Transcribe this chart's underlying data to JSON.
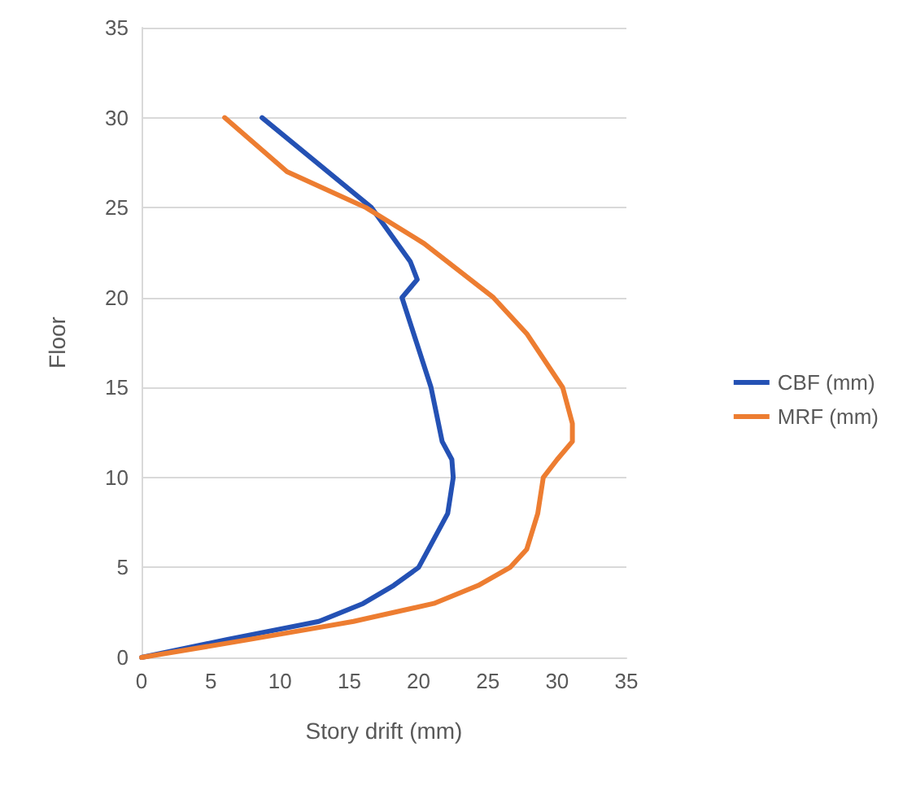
{
  "chart_data": {
    "type": "line",
    "xlabel": "Story drift (mm)",
    "ylabel": "Floor",
    "xlim": [
      0,
      35
    ],
    "xticks": [
      0,
      5,
      10,
      15,
      20,
      25,
      30,
      35
    ],
    "ylim": [
      0,
      35
    ],
    "yticks": [
      0,
      5,
      10,
      15,
      20,
      25,
      30,
      35
    ],
    "grid": "y",
    "legend": "right",
    "marker": "none",
    "line_style": "solid",
    "series": [
      {
        "name": "CBF (mm)",
        "color": "#2451b4",
        "x": [
          0,
          6.2,
          12.8,
          16.0,
          18.2,
          20.0,
          20.7,
          22.1,
          22.5,
          22.4,
          21.7,
          20.9,
          18.8,
          19.9,
          19.4,
          16.6,
          8.7
        ],
        "values": [
          0,
          1,
          2,
          3,
          4,
          5,
          6,
          8,
          10,
          11,
          12,
          15,
          20,
          21,
          22,
          25,
          30
        ]
      },
      {
        "name": "MRF (mm)",
        "color": "#ed7d31",
        "x": [
          0,
          7.8,
          15.3,
          21.1,
          24.3,
          26.6,
          27.8,
          28.6,
          29.0,
          30.0,
          31.1,
          31.1,
          30.4,
          27.8,
          25.4,
          20.4,
          16.2,
          10.5,
          6.0
        ],
        "values": [
          0,
          1,
          2,
          3,
          4,
          5,
          6,
          8,
          10,
          11,
          12,
          13,
          15,
          18,
          20,
          23,
          25,
          27,
          30
        ]
      }
    ]
  }
}
